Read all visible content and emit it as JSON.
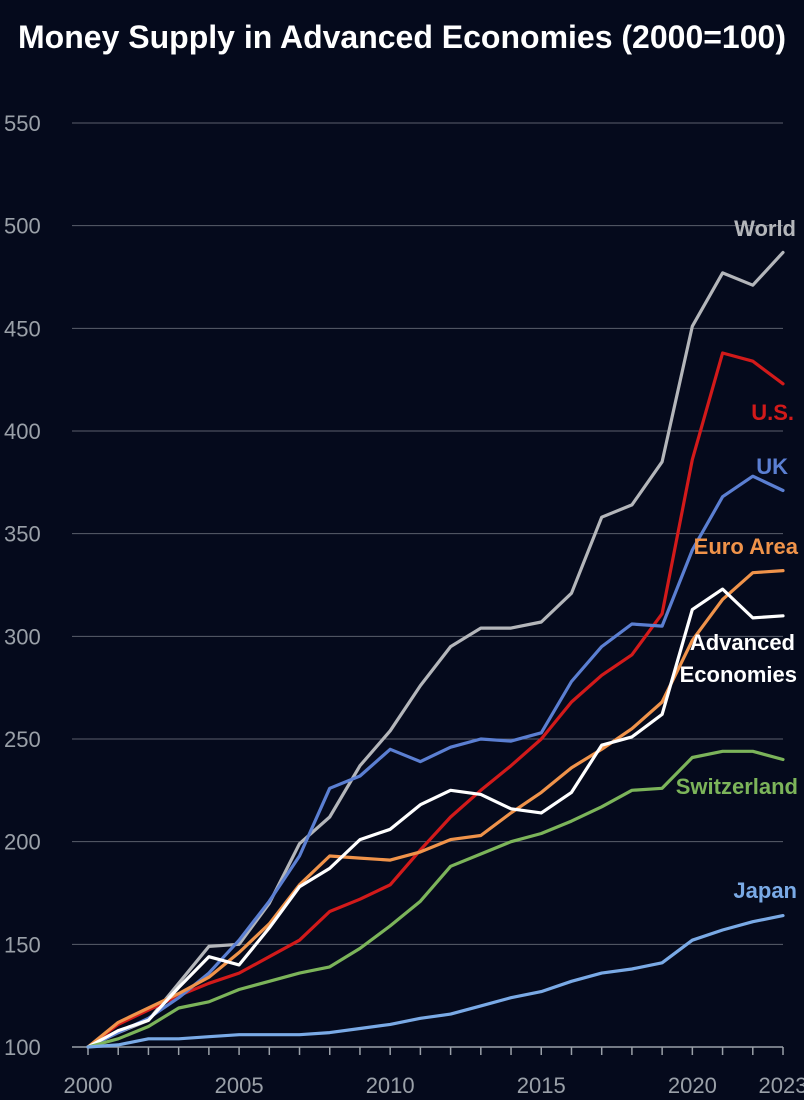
{
  "chart_data": {
    "type": "line",
    "title": "Money Supply in Advanced Economies (2000=100)",
    "xlabel": "",
    "ylabel": "",
    "xlim": [
      2000,
      2023
    ],
    "ylim": [
      100,
      550
    ],
    "y_ticks": [
      100,
      150,
      200,
      250,
      300,
      350,
      400,
      450,
      500,
      550
    ],
    "x_tick_labels": [
      "2000",
      "2005",
      "2010",
      "2015",
      "2020",
      "2023"
    ],
    "grid": "horizontal",
    "background": "#050a1c",
    "x": [
      2000,
      2001,
      2002,
      2003,
      2004,
      2005,
      2006,
      2007,
      2008,
      2009,
      2010,
      2011,
      2012,
      2013,
      2014,
      2015,
      2016,
      2017,
      2018,
      2019,
      2020,
      2021,
      2022,
      2023
    ],
    "series": [
      {
        "name": "World",
        "color": "#b4b6ba",
        "values": [
          100,
          107,
          113,
          131,
          149,
          150,
          170,
          199,
          212,
          237,
          254,
          276,
          295,
          304,
          304,
          307,
          321,
          358,
          364,
          385,
          451,
          477,
          471,
          487
        ]
      },
      {
        "name": "U.S.",
        "color": "#d21a1a",
        "values": [
          100,
          111,
          118,
          125,
          131,
          136,
          144,
          152,
          166,
          172,
          179,
          196,
          212,
          225,
          237,
          250,
          268,
          281,
          291,
          311,
          386,
          438,
          434,
          423
        ]
      },
      {
        "name": "UK",
        "color": "#5b7fd2",
        "values": [
          100,
          107,
          114,
          124,
          136,
          152,
          171,
          193,
          226,
          232,
          245,
          239,
          246,
          250,
          249,
          253,
          278,
          295,
          306,
          305,
          342,
          368,
          378,
          371
        ]
      },
      {
        "name": "Euro Area",
        "color": "#f0934a",
        "values": [
          100,
          112,
          119,
          126,
          134,
          146,
          160,
          179,
          193,
          192,
          191,
          195,
          201,
          203,
          214,
          224,
          236,
          245,
          255,
          268,
          298,
          318,
          331,
          332
        ]
      },
      {
        "name": "Advanced Economies",
        "color": "#ffffff",
        "values": [
          100,
          108,
          113,
          129,
          144,
          140,
          158,
          178,
          187,
          201,
          206,
          218,
          225,
          223,
          216,
          214,
          224,
          247,
          251,
          262,
          313,
          323,
          309,
          310
        ]
      },
      {
        "name": "Switzerland",
        "color": "#7cb45a",
        "values": [
          100,
          104,
          110,
          119,
          122,
          128,
          132,
          136,
          139,
          148,
          159,
          171,
          188,
          194,
          200,
          204,
          210,
          217,
          225,
          226,
          241,
          244,
          244,
          240
        ]
      },
      {
        "name": "Japan",
        "color": "#7aaae6",
        "values": [
          100,
          101,
          104,
          104,
          105,
          106,
          106,
          106,
          107,
          109,
          111,
          114,
          116,
          120,
          124,
          127,
          132,
          136,
          138,
          141,
          152,
          157,
          161,
          164
        ]
      }
    ],
    "label_text": {
      "world": "World",
      "us": "U.S.",
      "uk": "UK",
      "euro": "Euro Area",
      "advanced_line1": "Advanced",
      "advanced_line2": "Economies",
      "switzerland": "Switzerland",
      "japan": "Japan"
    }
  }
}
